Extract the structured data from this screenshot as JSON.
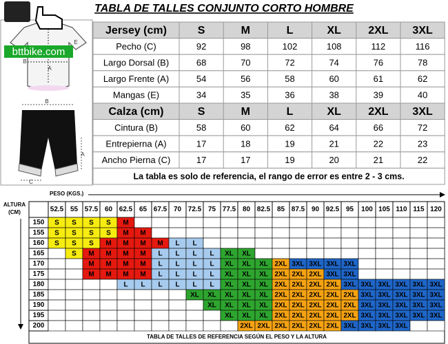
{
  "title": "TABLA DE TALLES CONJUNTO CORTO HOMBRE",
  "logo": "bttbike.com",
  "illustration_labels": [
    "A",
    "B",
    "E",
    "B",
    "A",
    "C"
  ],
  "size_table": {
    "jersey": {
      "heading": "Jersey (cm)",
      "sizes": [
        "S",
        "M",
        "L",
        "XL",
        "2XL",
        "3XL"
      ],
      "rows": [
        {
          "label": "Pecho (C)",
          "values": [
            92,
            98,
            102,
            108,
            112,
            116
          ]
        },
        {
          "label": "Largo Dorsal (B)",
          "values": [
            68,
            70,
            72,
            74,
            76,
            78
          ]
        },
        {
          "label": "Largo Frente (A)",
          "values": [
            54,
            56,
            58,
            60,
            61,
            62
          ]
        },
        {
          "label": "Mangas (E)",
          "values": [
            34,
            35,
            36,
            38,
            39,
            40
          ]
        }
      ]
    },
    "calza": {
      "heading": "Calza (cm)",
      "sizes": [
        "S",
        "M",
        "L",
        "XL",
        "2XL",
        "3XL"
      ],
      "rows": [
        {
          "label": "Cintura (B)",
          "values": [
            58,
            60,
            62,
            64,
            66,
            72
          ]
        },
        {
          "label": "Entrepierna (A)",
          "values": [
            17,
            18,
            19,
            21,
            22,
            23
          ]
        },
        {
          "label": "Ancho Pierna (C)",
          "values": [
            17,
            17,
            19,
            20,
            21,
            22
          ]
        }
      ]
    },
    "note": "La tabla es solo de referencia, el rango de error es entre 2 - 3 cms."
  },
  "weight_height_table": {
    "weight_label": "PESO (KGS.)",
    "height_label": [
      "ALTURA",
      "(CM)"
    ],
    "weights": [
      52.5,
      55,
      57.5,
      60,
      62.5,
      65,
      67.5,
      70,
      72.5,
      75,
      77.5,
      80,
      82.5,
      85,
      87.5,
      90,
      92.5,
      95,
      100,
      105,
      110,
      115,
      120
    ],
    "heights": [
      150,
      155,
      160,
      165,
      170,
      175,
      180,
      185,
      190,
      195,
      200
    ],
    "cells": [
      [
        "S",
        "S",
        "S",
        "S",
        "M",
        null,
        null,
        null,
        null,
        null,
        null,
        null,
        null,
        null,
        null,
        null,
        null,
        null,
        null,
        null,
        null,
        null,
        null
      ],
      [
        "S",
        "S",
        "S",
        "S",
        "M",
        "M",
        null,
        null,
        null,
        null,
        null,
        null,
        null,
        null,
        null,
        null,
        null,
        null,
        null,
        null,
        null,
        null,
        null
      ],
      [
        "S",
        "S",
        "S",
        "M",
        "M",
        "M",
        "M",
        "L",
        "L",
        null,
        null,
        null,
        null,
        null,
        null,
        null,
        null,
        null,
        null,
        null,
        null,
        null,
        null
      ],
      [
        null,
        "S",
        "M",
        "M",
        "M",
        "M",
        "L",
        "L",
        "L",
        "L",
        "XL",
        "XL",
        null,
        null,
        null,
        null,
        null,
        null,
        null,
        null,
        null,
        null,
        null
      ],
      [
        null,
        null,
        "M",
        "M",
        "M",
        "M",
        "L",
        "L",
        "L",
        "L",
        "XL",
        "XL",
        "XL",
        "2XL",
        "3XL",
        "3XL",
        "3XL",
        "3XL",
        null,
        null,
        null,
        null,
        null
      ],
      [
        null,
        null,
        "M",
        "M",
        "M",
        "M",
        "L",
        "L",
        "L",
        "L",
        "XL",
        "XL",
        "XL",
        "2XL",
        "2XL",
        "2XL",
        "3XL",
        "3XL",
        null,
        null,
        null,
        null,
        null
      ],
      [
        null,
        null,
        null,
        null,
        "L",
        "L",
        "L",
        "L",
        "L",
        "L",
        "XL",
        "XL",
        "XL",
        "2XL",
        "2XL",
        "2XL",
        "2XL",
        "3XL",
        "3XL",
        "3XL",
        "3XL",
        "3XL",
        "3XL"
      ],
      [
        null,
        null,
        null,
        null,
        null,
        null,
        null,
        null,
        "XL",
        "XL",
        "XL",
        "XL",
        "XL",
        "2XL",
        "2XL",
        "2XL",
        "2XL",
        "2XL",
        "3XL",
        "3XL",
        "3XL",
        "3XL",
        "3XL"
      ],
      [
        null,
        null,
        null,
        null,
        null,
        null,
        null,
        null,
        null,
        "XL",
        "XL",
        "XL",
        "XL",
        "2XL",
        "2XL",
        "2XL",
        "2XL",
        "2XL",
        "3XL",
        "3XL",
        "3XL",
        "3XL",
        "3XL"
      ],
      [
        null,
        null,
        null,
        null,
        null,
        null,
        null,
        null,
        null,
        null,
        "XL",
        "XL",
        "XL",
        "2XL",
        "2XL",
        "2XL",
        "2XL",
        "2XL",
        "3XL",
        "3XL",
        "3XL",
        "3XL",
        "3XL"
      ],
      [
        null,
        null,
        null,
        null,
        null,
        null,
        null,
        null,
        null,
        null,
        null,
        "2XL",
        "2XL",
        "2XL",
        "2XL",
        "2XL",
        "2XL",
        "3XL",
        "3XL",
        "3XL",
        "3XL",
        null,
        null
      ]
    ],
    "footer": "TABLA DE TALLES DE REFERENCIA SEGÚN EL PESO Y LA ALTURA"
  }
}
